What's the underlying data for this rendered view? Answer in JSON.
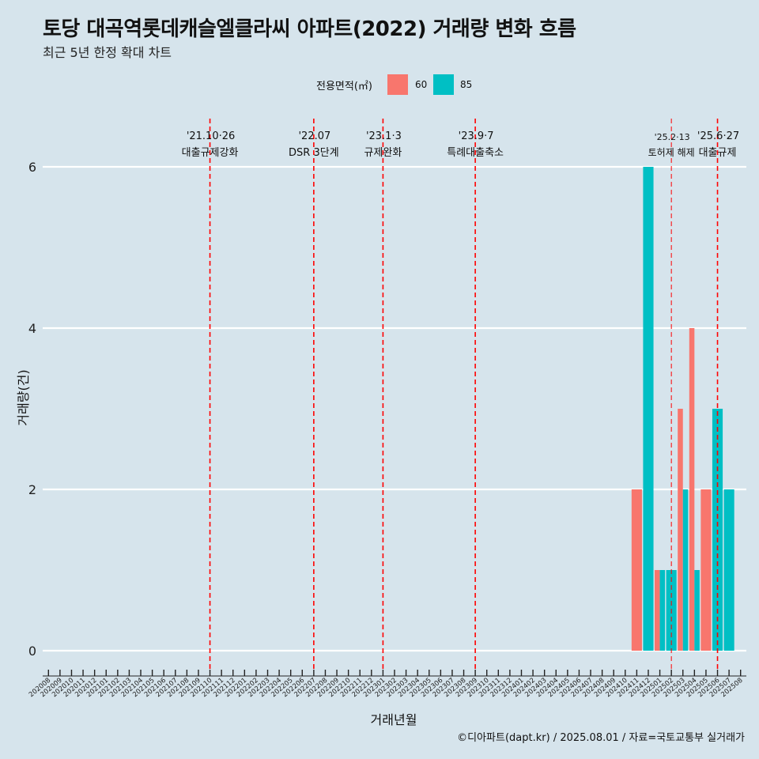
{
  "chart_data": {
    "type": "bar",
    "title": "토당 대곡역롯데캐슬엘클라씨 아파트(2022) 거래량 변화 흐름",
    "subtitle": "최근 5년 한정 확대 차트",
    "xlabel": "거래년월",
    "ylabel": "거래량(건)",
    "caption": "©디아파트(dapt.kr) / 2025.08.01 / 자료=국토교통부 실거래가",
    "legend_title": "전용면적(㎡)",
    "legend_position": "top",
    "grid": true,
    "ylim": [
      0,
      6
    ],
    "yticks": [
      0,
      2,
      4,
      6
    ],
    "categories": [
      "202008",
      "202009",
      "202010",
      "202011",
      "202012",
      "202101",
      "202102",
      "202103",
      "202104",
      "202105",
      "202106",
      "202107",
      "202108",
      "202109",
      "202110",
      "202111",
      "202112",
      "202201",
      "202202",
      "202203",
      "202204",
      "202205",
      "202206",
      "202207",
      "202208",
      "202209",
      "202210",
      "202211",
      "202212",
      "202301",
      "202302",
      "202303",
      "202304",
      "202305",
      "202306",
      "202307",
      "202308",
      "202309",
      "202310",
      "202311",
      "202312",
      "202401",
      "202402",
      "202403",
      "202404",
      "202405",
      "202406",
      "202407",
      "202408",
      "202409",
      "202410",
      "202411",
      "202412",
      "202501",
      "202502",
      "202503",
      "202504",
      "202505",
      "202506",
      "202507",
      "202508"
    ],
    "series": [
      {
        "name": "60",
        "color": "#f8766d",
        "values": [
          {
            "x": "202411",
            "y": 2
          },
          {
            "x": "202501",
            "y": 1
          },
          {
            "x": "202503",
            "y": 3
          },
          {
            "x": "202504",
            "y": 4
          },
          {
            "x": "202505",
            "y": 2
          }
        ]
      },
      {
        "name": "85",
        "color": "#00bfc4",
        "values": [
          {
            "x": "202412",
            "y": 6
          },
          {
            "x": "202501",
            "y": 1
          },
          {
            "x": "202502",
            "y": 1
          },
          {
            "x": "202503",
            "y": 2
          },
          {
            "x": "202504",
            "y": 1
          },
          {
            "x": "202506",
            "y": 3
          },
          {
            "x": "202507",
            "y": 2
          }
        ]
      }
    ],
    "annotations": [
      {
        "x": "202110",
        "date": "'21.10·26",
        "label": "대출규제강화",
        "style": "major"
      },
      {
        "x": "202207",
        "date": "'22.07",
        "label": "DSR 3단계",
        "style": "major"
      },
      {
        "x": "202301",
        "date": "'23.1·3",
        "label": "규제완화",
        "style": "major"
      },
      {
        "x": "202309",
        "date": "'23.9·7",
        "label": "특례대출축소",
        "style": "major"
      },
      {
        "x": "202502",
        "date": "'25.2·13",
        "label": "토허제 해제",
        "style": "minor"
      },
      {
        "x": "202506",
        "date": "'25.6·27",
        "label": "대출규제",
        "style": "major"
      }
    ]
  }
}
